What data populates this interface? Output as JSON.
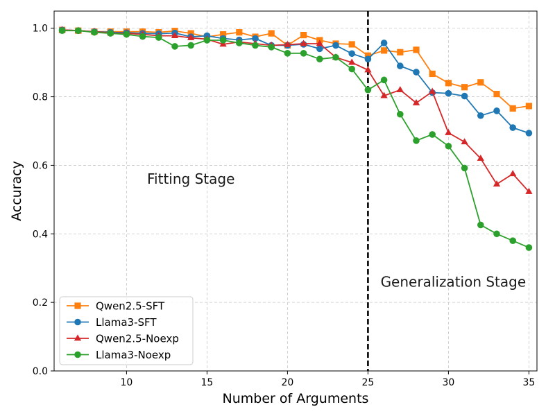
{
  "chart_data": {
    "type": "line",
    "title": "",
    "xlabel": "Number of Arguments",
    "ylabel": "Accuracy",
    "xlim": [
      5.5,
      35.5
    ],
    "ylim": [
      0.0,
      1.05
    ],
    "xticks": [
      10,
      15,
      20,
      25,
      30,
      35
    ],
    "yticks": [
      0.0,
      0.2,
      0.4,
      0.6,
      0.8,
      1.0
    ],
    "xtick_labels": [
      "10",
      "15",
      "20",
      "25",
      "30",
      "35"
    ],
    "ytick_labels": [
      "0.0",
      "0.2",
      "0.4",
      "0.6",
      "0.8",
      "1.0"
    ],
    "grid": true,
    "legend_position": "lower-left",
    "x": [
      6,
      7,
      8,
      9,
      10,
      11,
      12,
      13,
      14,
      15,
      16,
      17,
      18,
      19,
      20,
      21,
      22,
      23,
      24,
      25,
      26,
      27,
      28,
      29,
      30,
      31,
      32,
      33,
      34,
      35
    ],
    "series": [
      {
        "name": "Qwen2.5-SFT",
        "color": "#ff7f0e",
        "marker": "square",
        "values": [
          0.995,
          0.993,
          0.99,
          0.99,
          0.99,
          0.99,
          0.988,
          0.992,
          0.985,
          0.975,
          0.982,
          0.988,
          0.975,
          0.985,
          0.95,
          0.98,
          0.965,
          0.955,
          0.953,
          0.92,
          0.935,
          0.93,
          0.937,
          0.867,
          0.84,
          0.828,
          0.842,
          0.808,
          0.766,
          0.773
        ]
      },
      {
        "name": "Llama3-SFT",
        "color": "#1f77b4",
        "marker": "circle",
        "values": [
          0.995,
          0.993,
          0.99,
          0.988,
          0.987,
          0.985,
          0.984,
          0.986,
          0.975,
          0.978,
          0.97,
          0.966,
          0.97,
          0.95,
          0.95,
          0.953,
          0.94,
          0.95,
          0.926,
          0.91,
          0.957,
          0.89,
          0.872,
          0.812,
          0.81,
          0.802,
          0.745,
          0.759,
          0.71,
          0.694
        ]
      },
      {
        "name": "Qwen2.5-Noexp",
        "color": "#d62728",
        "marker": "triangle",
        "values": [
          0.995,
          0.993,
          0.99,
          0.986,
          0.985,
          0.982,
          0.978,
          0.978,
          0.972,
          0.968,
          0.953,
          0.96,
          0.955,
          0.95,
          0.952,
          0.955,
          0.955,
          0.915,
          0.9,
          0.878,
          0.803,
          0.82,
          0.782,
          0.815,
          0.695,
          0.668,
          0.62,
          0.545,
          0.575,
          0.523
        ]
      },
      {
        "name": "Llama3-Noexp",
        "color": "#2ca02c",
        "marker": "circle",
        "values": [
          0.993,
          0.993,
          0.988,
          0.985,
          0.982,
          0.976,
          0.973,
          0.947,
          0.95,
          0.965,
          0.965,
          0.957,
          0.95,
          0.945,
          0.927,
          0.927,
          0.91,
          0.915,
          0.881,
          0.82,
          0.849,
          0.749,
          0.672,
          0.69,
          0.656,
          0.592,
          0.426,
          0.4,
          0.38,
          0.36
        ]
      }
    ],
    "vline": {
      "x": 25,
      "style": "dashed",
      "color": "#000000"
    },
    "annotations": [
      {
        "text": "Fitting Stage",
        "x": 14,
        "y": 0.56
      },
      {
        "text": "Generalization Stage",
        "x": 30.3,
        "y": 0.26
      }
    ]
  }
}
